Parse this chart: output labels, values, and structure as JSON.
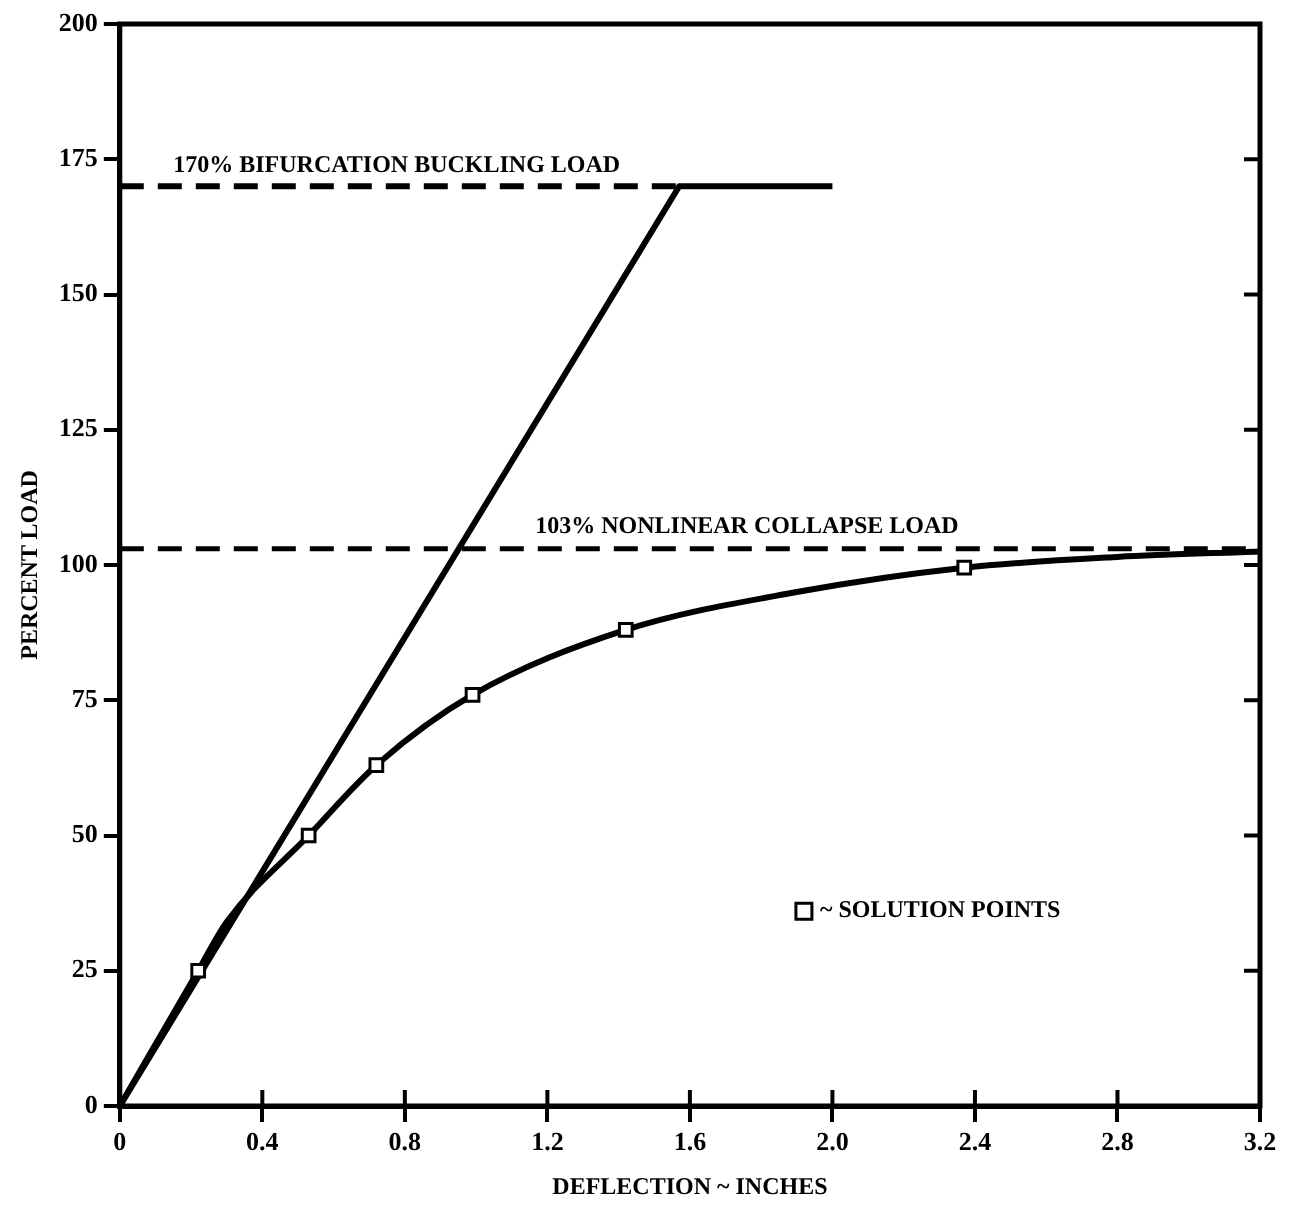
{
  "chart_data": {
    "type": "line",
    "xlabel": "DEFLECTION ~ INCHES",
    "ylabel": "PERCENT LOAD",
    "xlim": [
      0,
      3.2
    ],
    "ylim": [
      0,
      200
    ],
    "xticks": [
      0,
      0.4,
      0.8,
      1.2,
      1.6,
      {
        "value": 2,
        "label": "2.0"
      },
      2.4,
      2.8,
      3.2
    ],
    "yticks": [
      0,
      25,
      50,
      75,
      100,
      125,
      150,
      175,
      200
    ],
    "grid": false,
    "legend": "bottom right",
    "annotations": [
      {
        "text": "170% BIFURCATION BUCKLING LOAD",
        "x": 0.15,
        "y": 170
      }
    ],
    "series": [
      {
        "color": "#000000",
        "x": [
          0,
          1.57,
          2.0
        ],
        "values": [
          0,
          170,
          170
        ],
        "marker": "none",
        "line_style": "solid"
      },
      {
        "color": "#000000",
        "x": [
          0,
          1.57
        ],
        "values": [
          170,
          170
        ],
        "marker": "none",
        "line_style": "dashed"
      },
      {
        "color": "#000000",
        "x": [
          0,
          0.22,
          0.3,
          0.53,
          0.72,
          0.99,
          1.42,
          1.9,
          2.37,
          2.8,
          3.2
        ],
        "values": [
          0,
          25,
          34,
          50,
          63,
          76,
          88,
          95,
          99.5,
          101.5,
          102.5
        ],
        "marker": "none",
        "line_style": "solid"
      },
      {
        "type": "scatter",
        "name": "~ SOLUTION POINTS",
        "color": "#000000",
        "x": [
          0.22,
          0.53,
          0.72,
          0.99,
          1.42,
          2.37
        ],
        "values": [
          25,
          50,
          63,
          76,
          88,
          99.5
        ],
        "marker": "square"
      }
    ],
    "ref_lines": [
      {
        "axis": "y",
        "value": 103,
        "label": "103% NONLINEAR COLLAPSE LOAD",
        "color": "#000000",
        "line_style": "dashed"
      }
    ]
  }
}
